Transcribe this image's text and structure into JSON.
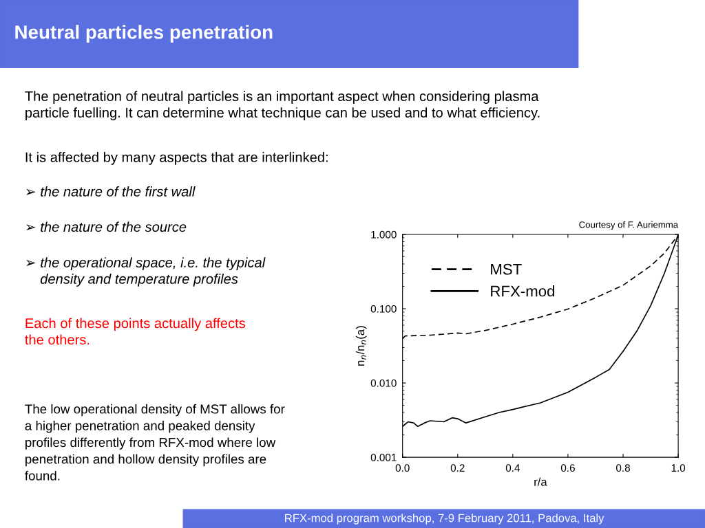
{
  "chart_data": {
    "type": "line",
    "title": "Neutral particles penetration",
    "xlabel": "r/a",
    "ylabel": "n$_{n}$/n$_{n}$(a)",
    "log": "y",
    "xlim": [
      0.0,
      1.0
    ],
    "ylim": [
      0.001,
      1.0
    ],
    "xticks": [
      {
        "value": 0.0,
        "label": "0.0"
      },
      {
        "value": 0.2,
        "label": "0.2"
      },
      {
        "value": 0.4,
        "label": "0.4"
      },
      {
        "value": 0.6,
        "label": "0.6"
      },
      {
        "value": 0.8,
        "label": "0.8"
      },
      {
        "value": 1.0,
        "label": "1.0"
      }
    ],
    "yticks": [
      {
        "value": 0.001,
        "label": "0.001"
      },
      {
        "value": 0.01,
        "label": "0.010"
      },
      {
        "value": 0.1,
        "label": "0.100"
      },
      {
        "value": 1.0,
        "label": "1.000"
      }
    ],
    "grid": false,
    "legend": "top left",
    "marker": "none",
    "series": [
      {
        "name": "MST",
        "color": "#000000",
        "line_style": "dashed",
        "x": [
          0.0,
          0.01,
          0.1,
          0.2,
          0.23,
          0.3,
          0.4,
          0.5,
          0.6,
          0.7,
          0.8,
          0.9,
          0.95,
          1.0
        ],
        "values": [
          0.04,
          0.043,
          0.044,
          0.047,
          0.046,
          0.051,
          0.062,
          0.077,
          0.099,
          0.14,
          0.207,
          0.377,
          0.56,
          0.98
        ]
      },
      {
        "name": "RFX-mod",
        "color": "#000000",
        "line_style": "solid",
        "x": [
          0.0,
          0.02,
          0.04,
          0.055,
          0.08,
          0.1,
          0.15,
          0.18,
          0.2,
          0.23,
          0.3,
          0.35,
          0.4,
          0.5,
          0.6,
          0.7,
          0.75,
          0.8,
          0.85,
          0.9,
          0.95,
          1.0
        ],
        "values": [
          0.0026,
          0.003,
          0.0029,
          0.0026,
          0.0029,
          0.0031,
          0.003,
          0.0034,
          0.0033,
          0.0029,
          0.0035,
          0.004,
          0.0044,
          0.0054,
          0.0075,
          0.0119,
          0.0152,
          0.0267,
          0.05,
          0.11,
          0.3,
          0.98
        ]
      }
    ],
    "annotations": [
      "The penetration of neutral particles is an important aspect when considering plasma\nparticle fuelling. It can determine what technique can be used and to what efficiency.",
      "It is affected by many aspects that are interlinked:",
      "➢ the nature of the first wall",
      "➢ the nature of the source",
      "➢ the operational space, i.e. the typical\n    density and temperature profiles",
      "Each of these points actually affects\nthe others.",
      "The low operational density of MST allows for\na higher penetration and peaked density\nprofiles differently from RFX-mod where low\npenetration and hollow density profiles are\nfound.",
      "Courtesy of F. Auriemma",
      "RFX-mod program workshop, 7-9 February 2011, Padova, Italy"
    ]
  }
}
